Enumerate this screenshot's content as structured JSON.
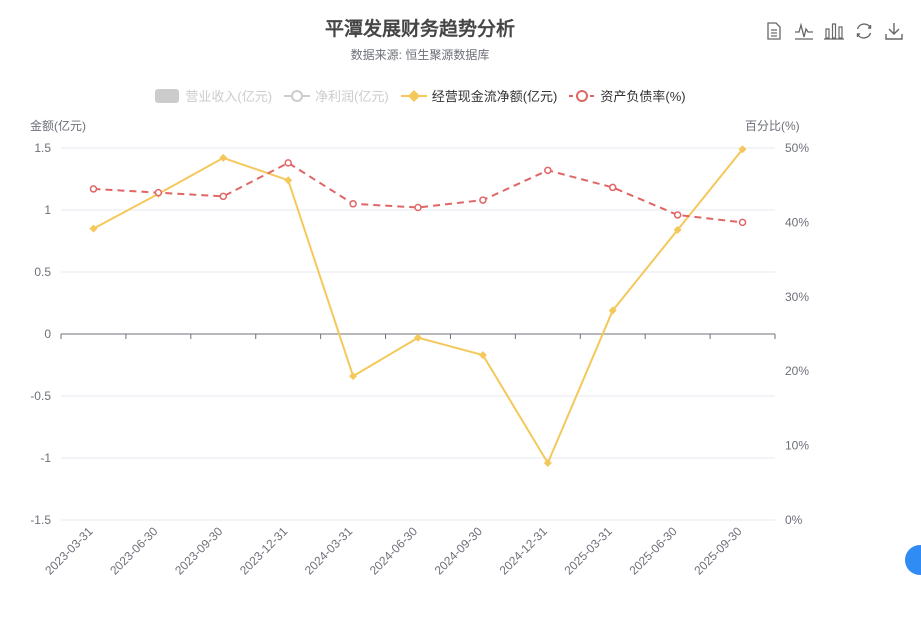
{
  "title": "平潭发展财务趋势分析",
  "subtitle": "数据来源: 恒生聚源数据库",
  "toolbox": {
    "icons": [
      "data-view-icon",
      "line-chart-icon",
      "bar-chart-icon",
      "restore-icon",
      "download-icon"
    ]
  },
  "legend": [
    {
      "label": "营业收入(亿元)",
      "active": false,
      "icon": "rect",
      "color": "#cccccc"
    },
    {
      "label": "净利润(亿元)",
      "active": false,
      "icon": "circle-line",
      "color": "#cccccc"
    },
    {
      "label": "经营现金流净额(亿元)",
      "active": true,
      "icon": "diamond-line",
      "color": "#f4c85a"
    },
    {
      "label": "资产负债率(%)",
      "active": true,
      "icon": "circle-dash",
      "color": "#e06666"
    }
  ],
  "chart_data": {
    "type": "line",
    "x": [
      "2023-03-31",
      "2023-06-30",
      "2023-09-30",
      "2023-12-31",
      "2024-03-31",
      "2024-06-30",
      "2024-09-30",
      "2024-12-31",
      "2025-03-31",
      "2025-06-30",
      "2025-09-30"
    ],
    "y_left": {
      "name": "金额(亿元)",
      "min": -1.5,
      "max": 1.5,
      "interval": 0.5,
      "ticks": [
        "-1.5",
        "-1",
        "-0.5",
        "0",
        "0.5",
        "1",
        "1.5"
      ]
    },
    "y_right": {
      "name": "百分比(%)",
      "min": 0,
      "max": 50,
      "interval": 10,
      "ticks": [
        "0%",
        "10%",
        "20%",
        "30%",
        "40%",
        "50%"
      ]
    },
    "series": [
      {
        "name": "经营现金流净额(亿元)",
        "axis": "left",
        "color": "#f4c85a",
        "style": "solid",
        "marker": "diamond",
        "values": [
          0.85,
          1.13,
          1.42,
          1.24,
          -0.34,
          -0.03,
          -0.17,
          -1.04,
          0.19,
          0.84,
          1.49
        ]
      },
      {
        "name": "资产负债率(%)",
        "axis": "right",
        "color": "#e06666",
        "style": "dashed",
        "marker": "circle",
        "values": [
          44.5,
          44.0,
          43.5,
          48.0,
          42.5,
          42.0,
          43.0,
          47.0,
          44.7,
          41.0,
          40.0
        ]
      }
    ],
    "grid": true,
    "legend_position": "top"
  }
}
